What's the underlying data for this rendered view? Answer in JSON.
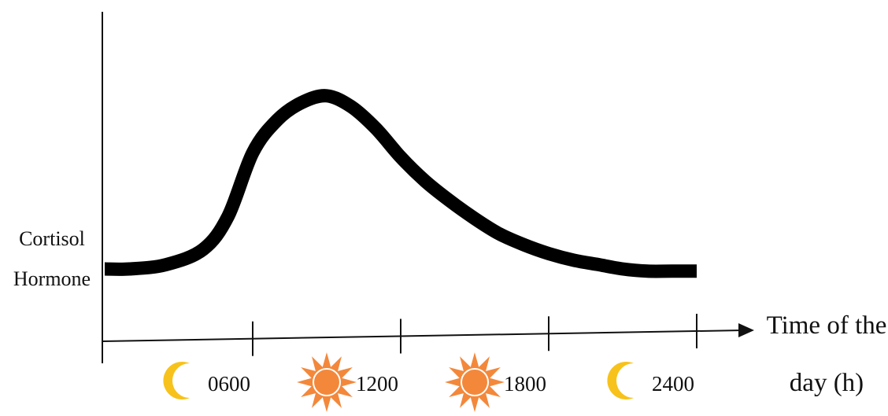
{
  "chart_data": {
    "type": "line",
    "ylabel_lines": [
      "Cortisol",
      "Hormone"
    ],
    "xlabel_lines": [
      "Time of the",
      "day (h)"
    ],
    "x_ticks": [
      "0600",
      "1200",
      "1800",
      "2400"
    ],
    "xlim": [
      0,
      2400
    ],
    "grid": false,
    "legend": "none",
    "line_color": "#000000",
    "series": [
      {
        "x": [
          0,
          100,
          250,
          400,
          500,
          600,
          700,
          800,
          900,
          1000,
          1100,
          1200,
          1300,
          1400,
          1500,
          1600,
          1700,
          1800,
          1900,
          2000,
          2100,
          2200,
          2300,
          2400
        ],
        "y": [
          0.21,
          0.21,
          0.23,
          0.3,
          0.45,
          0.74,
          0.89,
          0.97,
          1.0,
          0.95,
          0.85,
          0.72,
          0.61,
          0.52,
          0.44,
          0.37,
          0.32,
          0.28,
          0.25,
          0.23,
          0.21,
          0.2,
          0.2,
          0.2
        ]
      }
    ],
    "ylim": [
      -0.4,
      1.15
    ],
    "x_markers": [
      {
        "icon": "moon-icon",
        "x": 300
      },
      {
        "icon": "sun-icon",
        "x": 900
      },
      {
        "icon": "sun-icon",
        "x": 1500
      },
      {
        "icon": "moon-icon",
        "x": 2100
      }
    ],
    "icon_colors": {
      "moon": "#f7c21b",
      "sun": "#f3883b"
    }
  }
}
